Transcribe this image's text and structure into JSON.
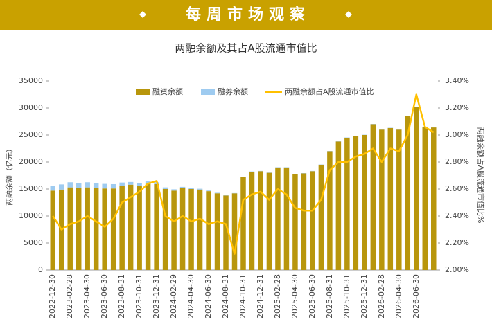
{
  "header": {
    "title": "每周市场观察"
  },
  "chart_data": {
    "type": "bar",
    "title": "两融余额及其占A股流通市值比",
    "y_label": "两融余额（亿元）",
    "y2_label": "两融余额占A股流通市值比%",
    "categories": [
      "2022-12-30",
      null,
      "2023-02-28",
      null,
      "2023-04-30",
      null,
      "2023-06-30",
      null,
      "2023-08-31",
      null,
      "2023-10-31",
      null,
      "2023-12-31",
      null,
      "2024-02-29",
      null,
      "2024-04-30",
      null,
      "2024-06-30",
      null,
      "2024-08-31",
      null,
      "2024-10-31",
      null,
      "2024-12-31",
      null,
      "2025-02-28",
      null,
      "2025-04-30",
      null,
      "2025-06-30",
      null,
      "2025-08-31",
      null,
      "2025-10-31",
      null,
      "2025-12-31",
      null,
      "2026-02-28",
      null,
      "2026-04-30",
      null,
      "2026-06-30",
      null,
      null
    ],
    "series": [
      {
        "name": "融资余额",
        "type": "bar",
        "color": "#b8960c",
        "values": [
          14700,
          14900,
          15300,
          15200,
          15300,
          15200,
          15100,
          15100,
          15600,
          15800,
          15600,
          16000,
          15900,
          15000,
          14700,
          15200,
          15000,
          14900,
          14600,
          14200,
          13800,
          14200,
          17200,
          18200,
          18300,
          18000,
          19000,
          19000,
          17700,
          17900,
          18300,
          19500,
          22000,
          23800,
          24500,
          24800,
          25000,
          27000,
          26000,
          26300,
          26000,
          28500,
          30200,
          26500,
          26400
        ]
      },
      {
        "name": "融券余额",
        "type": "bar",
        "color": "#9ecbf0",
        "values": [
          900,
          950,
          950,
          950,
          950,
          900,
          850,
          800,
          600,
          500,
          450,
          400,
          350,
          300,
          250,
          200,
          180,
          150,
          120,
          100,
          80,
          50,
          50,
          50,
          50,
          50,
          50,
          50,
          50,
          50,
          50,
          50,
          50,
          50,
          50,
          50,
          50,
          50,
          50,
          50,
          50,
          50,
          50,
          50,
          50
        ]
      },
      {
        "name": "两融余额占A股流通市值比",
        "type": "line",
        "axis": "y2",
        "color": "#ffc000",
        "values": [
          2.4,
          2.3,
          2.34,
          2.36,
          2.4,
          2.36,
          2.32,
          2.38,
          2.5,
          2.54,
          2.58,
          2.64,
          2.66,
          2.4,
          2.36,
          2.4,
          2.36,
          2.38,
          2.34,
          2.36,
          2.34,
          2.12,
          2.52,
          2.56,
          2.58,
          2.52,
          2.6,
          2.56,
          2.46,
          2.44,
          2.44,
          2.52,
          2.74,
          2.8,
          2.8,
          2.84,
          2.86,
          2.9,
          2.8,
          2.9,
          2.88,
          3.0,
          3.3,
          3.06,
          3.02
        ]
      }
    ],
    "ylim": [
      0,
      35000
    ],
    "yticks": [
      0,
      5000,
      10000,
      15000,
      20000,
      25000,
      30000,
      35000
    ],
    "y2lim": [
      2.0,
      3.4
    ],
    "y2ticks": [
      {
        "value": 2.0,
        "label": "2.00%"
      },
      {
        "value": 2.2,
        "label": "2.20%"
      },
      {
        "value": 2.4,
        "label": "2.40%"
      },
      {
        "value": 2.6,
        "label": "2.60%"
      },
      {
        "value": 2.8,
        "label": "2.80%"
      },
      {
        "value": 3.0,
        "label": "3.00%"
      },
      {
        "value": 3.2,
        "label": "3.20%"
      },
      {
        "value": 3.4,
        "label": "3.40%"
      }
    ],
    "grid": false,
    "legend": "top"
  }
}
